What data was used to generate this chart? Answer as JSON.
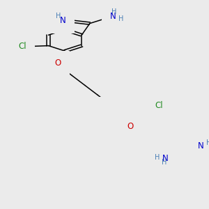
{
  "bg_color": "#ebebeb",
  "bond_color": "#000000",
  "atom_colors": {
    "N": "#0000cd",
    "O": "#cc0000",
    "Cl": "#228b22",
    "C": "#000000",
    "H": "#4a7fb5"
  },
  "font_size_atom": 8.5,
  "font_size_H": 7.0,
  "line_width": 1.1,
  "fig_width": 3.0,
  "fig_height": 3.0,
  "dpi": 100
}
